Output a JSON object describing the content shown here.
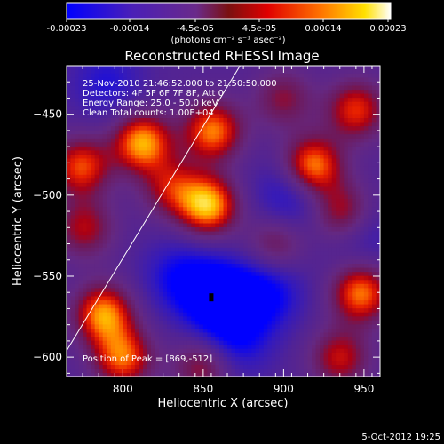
{
  "colorbar": {
    "ticks": [
      "-0.00023",
      "-0.00014",
      "-4.5e-05",
      "4.5e-05",
      "0.00014",
      "0.00023"
    ],
    "unit_label": "(photons cm⁻² s⁻¹ asec⁻²)",
    "range": [
      -0.00023,
      0.00023
    ]
  },
  "annotations": {
    "time": "25-Nov-2010 21:46:52.000 to 21:50:50.000",
    "detectors": "Detectors: 4F 5F 6F 7F 8F, Att 0",
    "energy": "Energy Range: 25.0 - 50.0 keV",
    "clean": "Clean    Total counts: 1.00E+04",
    "peak": "Position of Peak = [869,-512]"
  },
  "footer": {
    "date": "5-Oct-2012 19:25"
  },
  "colors": {
    "scale": [
      "#0000ff",
      "#3a1aa8",
      "#5b2aa0",
      "#6a2a8a",
      "#8a1a4a",
      "#c00000",
      "#ff5a00",
      "#ffb000",
      "#ffff80",
      "#ffffff"
    ]
  },
  "chart_data": {
    "type": "heatmap",
    "title": "Reconstructed RHESSI Image",
    "xlabel": "Heliocentric X (arcsec)",
    "ylabel": "Heliocentric Y (arcsec)",
    "xlim": [
      765,
      960
    ],
    "ylim": [
      -612,
      -420
    ],
    "xticks": [
      800,
      850,
      900,
      950
    ],
    "yticks": [
      -450,
      -500,
      -550,
      -600
    ],
    "peak": [
      869,
      -512
    ],
    "limb": [
      [
        765,
        -596
      ],
      [
        876,
        -415
      ]
    ],
    "cold_spot": [
      855,
      -563
    ],
    "sources": [
      {
        "x": 853,
        "y": -506,
        "amp": 1.0
      },
      {
        "x": 856,
        "y": -460,
        "amp": 0.85
      },
      {
        "x": 812,
        "y": -467,
        "amp": 0.95
      },
      {
        "x": 774,
        "y": -482,
        "amp": 0.75
      },
      {
        "x": 918,
        "y": -482,
        "amp": 0.95
      },
      {
        "x": 945,
        "y": -447,
        "amp": 0.7
      },
      {
        "x": 936,
        "y": -510,
        "amp": 0.6
      },
      {
        "x": 776,
        "y": -520,
        "amp": 0.55
      },
      {
        "x": 788,
        "y": -573,
        "amp": 0.9
      },
      {
        "x": 800,
        "y": -600,
        "amp": 0.8
      },
      {
        "x": 850,
        "y": -605,
        "amp": 0.55
      },
      {
        "x": 948,
        "y": -560,
        "amp": 0.85
      },
      {
        "x": 935,
        "y": -600,
        "amp": 0.6
      },
      {
        "x": 900,
        "y": -440,
        "amp": 0.45
      },
      {
        "x": 830,
        "y": -495,
        "amp": 0.55
      },
      {
        "x": 895,
        "y": -530,
        "amp": 0.45
      }
    ],
    "sinks": [
      {
        "x": 860,
        "y": -563,
        "amp": 1.1
      },
      {
        "x": 890,
        "y": -560,
        "amp": 0.7
      },
      {
        "x": 870,
        "y": -590,
        "amp": 0.6
      },
      {
        "x": 835,
        "y": -550,
        "amp": 0.6
      },
      {
        "x": 905,
        "y": -500,
        "amp": 0.6
      },
      {
        "x": 790,
        "y": -430,
        "amp": 0.5
      },
      {
        "x": 950,
        "y": -525,
        "amp": 0.35
      }
    ]
  }
}
